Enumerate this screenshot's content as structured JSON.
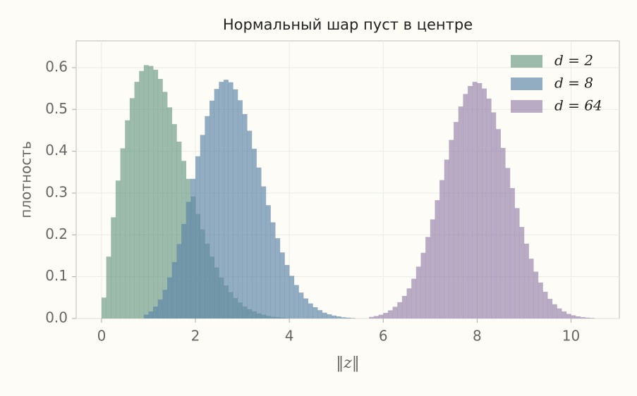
{
  "chart_data": {
    "type": "histogram",
    "title": "Нормальный шар пуст в центре",
    "xlabel": "‖z‖",
    "ylabel": "плотность",
    "xlim": [
      -0.54,
      11.03
    ],
    "ylim": [
      0,
      0.664
    ],
    "xticks": [
      0,
      2,
      4,
      6,
      8,
      10
    ],
    "yticks": [
      {
        "value": 0,
        "label": "0.0"
      },
      0.1,
      0.2,
      0.3,
      0.4,
      0.5,
      0.6
    ],
    "grid": true,
    "legend": "upper right",
    "series": [
      {
        "name": "d = 2",
        "color": "#6f9c86",
        "bins": [
          0,
          0.1,
          0.2,
          0.3,
          0.4,
          0.5,
          0.6,
          0.7,
          0.8,
          0.9,
          1,
          1.1,
          1.2,
          1.3,
          1.4,
          1.5,
          1.6,
          1.7,
          1.8,
          1.9,
          2,
          2.1,
          2.2,
          2.3,
          2.4,
          2.5,
          2.6,
          2.7,
          2.8,
          2.9,
          3,
          3.1,
          3.2,
          3.3,
          3.4,
          3.5,
          3.6,
          3.7,
          3.8,
          3.9,
          4
        ],
        "values": [
          0.05,
          0.148,
          0.242,
          0.33,
          0.407,
          0.474,
          0.527,
          0.566,
          0.592,
          0.606,
          0.604,
          0.595,
          0.573,
          0.542,
          0.505,
          0.465,
          0.423,
          0.377,
          0.334,
          0.292,
          0.25,
          0.213,
          0.179,
          0.148,
          0.122,
          0.098,
          0.079,
          0.063,
          0.049,
          0.038,
          0.029,
          0.022,
          0.017,
          0.012,
          0.009,
          0.006,
          0.004,
          0.003,
          0.002,
          0.001
        ]
      },
      {
        "name": "d = 8",
        "color": "#5f86a8",
        "bins": [
          0.9,
          1,
          1.1,
          1.2,
          1.3,
          1.4,
          1.5,
          1.6,
          1.7,
          1.8,
          1.9,
          2,
          2.1,
          2.2,
          2.3,
          2.4,
          2.5,
          2.6,
          2.7,
          2.8,
          2.9,
          3,
          3.1,
          3.2,
          3.3,
          3.4,
          3.5,
          3.6,
          3.7,
          3.8,
          3.9,
          4,
          4.1,
          4.2,
          4.3,
          4.4,
          4.5,
          4.6,
          4.7,
          4.8,
          4.9,
          5,
          5.1,
          5.2,
          5.3,
          5.4
        ],
        "values": [
          0.0093,
          0.0169,
          0.0286,
          0.0455,
          0.0685,
          0.0982,
          0.135,
          0.178,
          0.226,
          0.279,
          0.334,
          0.388,
          0.439,
          0.484,
          0.521,
          0.549,
          0.566,
          0.571,
          0.565,
          0.548,
          0.522,
          0.489,
          0.449,
          0.406,
          0.361,
          0.316,
          0.271,
          0.23,
          0.192,
          0.158,
          0.128,
          0.102,
          0.08,
          0.062,
          0.048,
          0.036,
          0.027,
          0.02,
          0.014,
          0.01,
          0.007,
          0.005,
          0.003,
          0.002,
          0.001
        ]
      },
      {
        "name": "d = 64",
        "color": "#9a84ae",
        "bins": [
          5.7,
          5.8,
          5.9,
          6,
          6.1,
          6.2,
          6.3,
          6.4,
          6.5,
          6.6,
          6.7,
          6.8,
          6.9,
          7,
          7.1,
          7.2,
          7.3,
          7.4,
          7.5,
          7.6,
          7.7,
          7.8,
          7.9,
          8,
          8.1,
          8.2,
          8.3,
          8.4,
          8.5,
          8.6,
          8.7,
          8.8,
          8.9,
          9,
          9.1,
          9.2,
          9.3,
          9.4,
          9.5,
          9.6,
          9.7,
          9.8,
          9.9,
          10,
          10.1,
          10.2,
          10.3,
          10.4,
          10.5
        ],
        "values": [
          0.0038,
          0.0059,
          0.009,
          0.0133,
          0.0195,
          0.028,
          0.039,
          0.054,
          0.072,
          0.095,
          0.124,
          0.157,
          0.195,
          0.237,
          0.283,
          0.331,
          0.38,
          0.427,
          0.47,
          0.507,
          0.537,
          0.556,
          0.566,
          0.563,
          0.55,
          0.526,
          0.493,
          0.453,
          0.408,
          0.36,
          0.312,
          0.264,
          0.219,
          0.179,
          0.143,
          0.112,
          0.086,
          0.064,
          0.047,
          0.034,
          0.024,
          0.017,
          0.011,
          0.0076,
          0.005,
          0.0032,
          0.002,
          0.0012
        ]
      }
    ]
  }
}
